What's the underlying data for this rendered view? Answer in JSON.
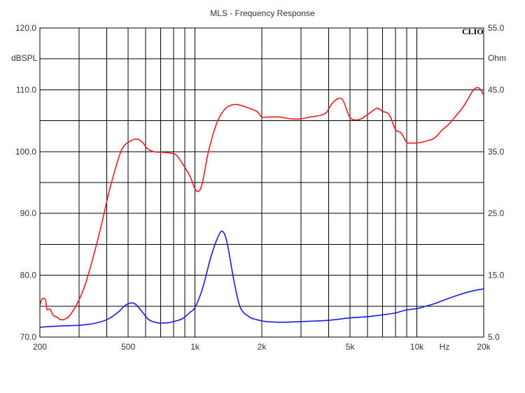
{
  "chart_data": {
    "type": "line",
    "title": "MLS - Frequency Response",
    "brand": "CLIO",
    "xlabel_unit": "Hz",
    "left_unit": "dBSPL",
    "right_unit": "Ohm",
    "x_scale": "log",
    "xlim": [
      200,
      20000
    ],
    "ylim_left": [
      70,
      120
    ],
    "ylim_right": [
      5,
      55
    ],
    "grid": true,
    "x_tick_labels": [
      {
        "value": 200,
        "label": "200"
      },
      {
        "value": 500,
        "label": "500"
      },
      {
        "value": 1000,
        "label": "1k"
      },
      {
        "value": 2000,
        "label": "2k"
      },
      {
        "value": 5000,
        "label": "5k"
      },
      {
        "value": 10000,
        "label": "10k"
      },
      {
        "value": 20000,
        "label": "20k"
      }
    ],
    "left_tick_labels": [
      {
        "value": 120,
        "label": "120.0"
      },
      {
        "value": 110,
        "label": "110.0"
      },
      {
        "value": 100,
        "label": "100.0"
      },
      {
        "value": 90,
        "label": "90.0"
      },
      {
        "value": 80,
        "label": "80.0"
      },
      {
        "value": 70,
        "label": "70.0"
      }
    ],
    "right_tick_labels": [
      {
        "value": 55,
        "label": "55.0"
      },
      {
        "value": 45,
        "label": "45.0"
      },
      {
        "value": 35,
        "label": "35.0"
      },
      {
        "value": 25,
        "label": "25.0"
      },
      {
        "value": 15,
        "label": "15.0"
      },
      {
        "value": 5,
        "label": "5.0"
      }
    ],
    "series": [
      {
        "axis": "left",
        "color": "#ee1c1c",
        "x": [
          200,
          205,
          212,
          215,
          222,
          230,
          240,
          245,
          255,
          262,
          270,
          285,
          300,
          320,
          345,
          375,
          410,
          440,
          470,
          510,
          550,
          580,
          610,
          650,
          700,
          760,
          820,
          880,
          950,
          1000,
          1040,
          1080,
          1150,
          1250,
          1350,
          1450,
          1550,
          1700,
          1900,
          2000,
          2150,
          2400,
          2700,
          3000,
          3300,
          3600,
          3900,
          4200,
          4600,
          5000,
          5500,
          6000,
          6600,
          7000,
          7500,
          8000,
          8500,
          9000,
          9500,
          10000,
          10500,
          11000,
          12000,
          13000,
          14000,
          15000,
          16000,
          17000,
          18000,
          19000,
          20000
        ],
        "values": [
          75.2,
          76.2,
          76.0,
          74.5,
          74.5,
          73.5,
          73.2,
          72.9,
          72.8,
          73.0,
          73.3,
          74.5,
          76.0,
          78.5,
          82.5,
          87.5,
          93.5,
          97.5,
          100.5,
          101.7,
          102.0,
          101.5,
          100.5,
          100.0,
          99.9,
          99.8,
          99.5,
          98.0,
          96.0,
          94.0,
          93.6,
          95.0,
          100.0,
          104.5,
          106.7,
          107.5,
          107.6,
          107.2,
          106.5,
          105.6,
          105.6,
          105.6,
          105.3,
          105.3,
          105.6,
          105.8,
          106.3,
          108.0,
          108.5,
          105.5,
          105.2,
          106.0,
          107.0,
          106.5,
          106.0,
          103.6,
          103.0,
          101.5,
          101.4,
          101.4,
          101.5,
          101.7,
          102.2,
          103.5,
          104.5,
          105.8,
          107.0,
          108.5,
          110.0,
          110.3,
          109.2
        ]
      },
      {
        "axis": "right",
        "color": "#1a1aee",
        "x": [
          200,
          250,
          300,
          350,
          400,
          450,
          480,
          510,
          540,
          580,
          620,
          680,
          750,
          820,
          880,
          950,
          1000,
          1080,
          1180,
          1280,
          1340,
          1400,
          1500,
          1600,
          1750,
          1900,
          2100,
          2500,
          3000,
          3500,
          4000,
          5000,
          6000,
          7000,
          8000,
          9000,
          10000,
          11000,
          12000,
          14000,
          16000,
          18000,
          20000
        ],
        "values": [
          6.6,
          6.8,
          6.9,
          7.2,
          7.8,
          9.0,
          10.0,
          10.5,
          10.3,
          9.0,
          7.8,
          7.3,
          7.3,
          7.6,
          8.0,
          9.0,
          9.8,
          12.8,
          18.0,
          21.5,
          22.0,
          20.0,
          14.0,
          9.8,
          8.3,
          7.8,
          7.5,
          7.4,
          7.5,
          7.6,
          7.7,
          8.1,
          8.3,
          8.6,
          8.9,
          9.4,
          9.6,
          10.0,
          10.4,
          11.3,
          12.0,
          12.5,
          12.8
        ]
      }
    ]
  }
}
